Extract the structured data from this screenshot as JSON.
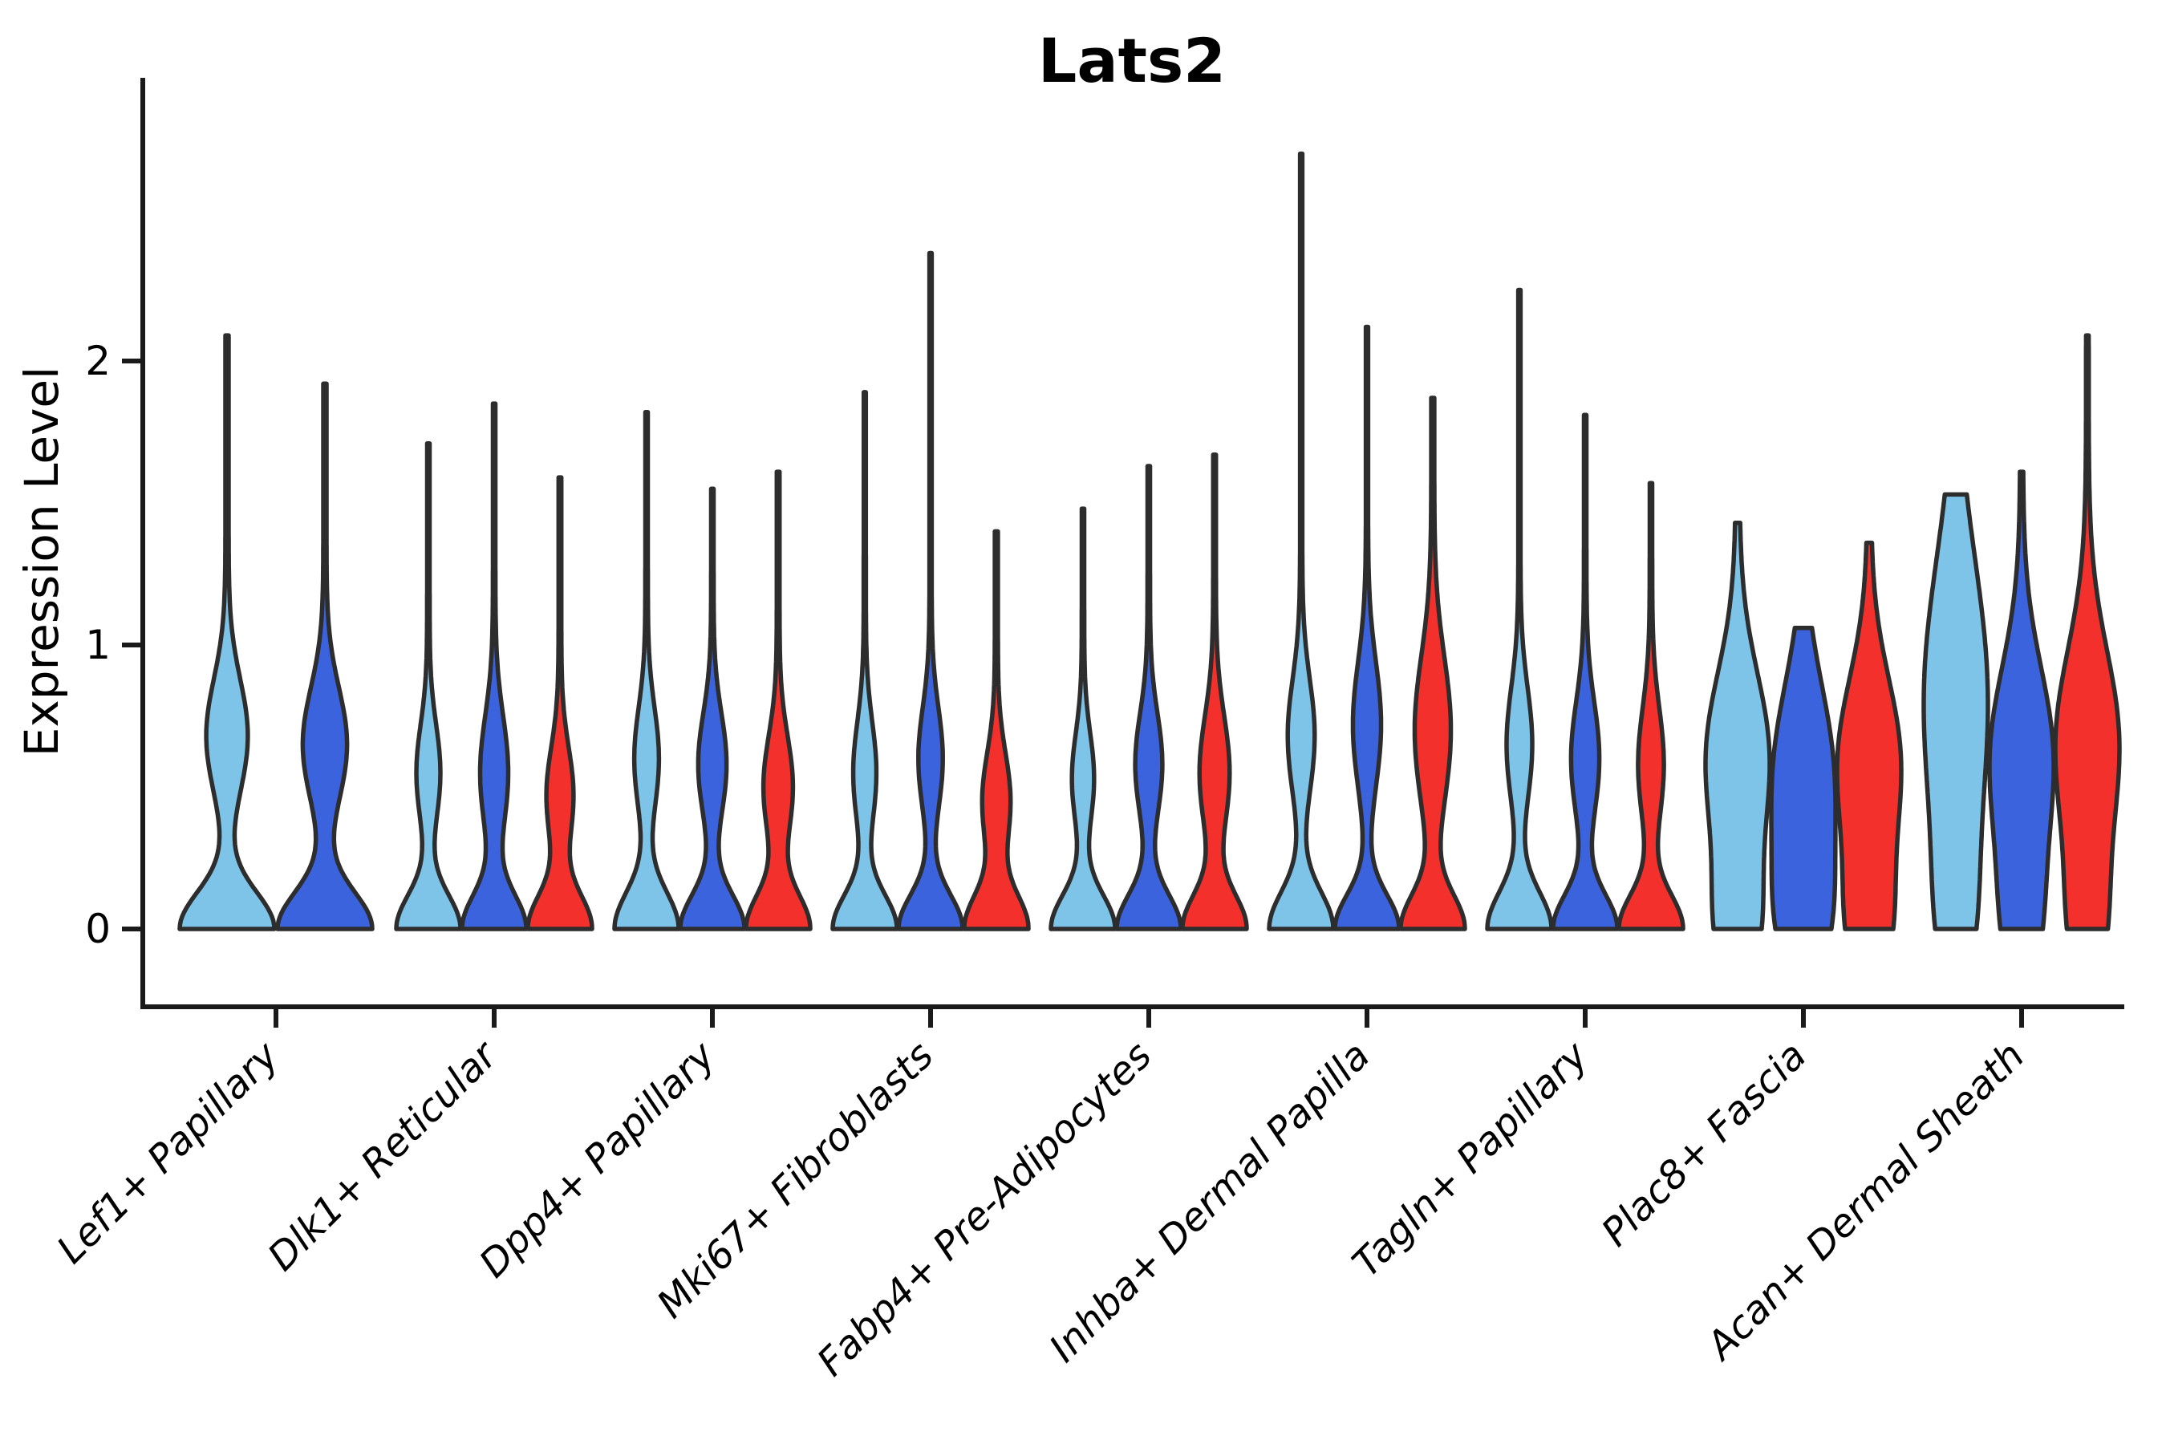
{
  "chart_data": {
    "type": "violin",
    "title": "Lats2",
    "ylabel": "Expression Level",
    "xlabel": "",
    "yticks": [
      "0",
      "1",
      "2"
    ],
    "ylim": [
      -0.27,
      2.97
    ],
    "grid": false,
    "legend_position": "none",
    "background": "#ffffff",
    "colors": {
      "light_blue": "#7EC4E9",
      "dark_blue": "#3B63DE",
      "red": "#F3302B",
      "outline": "#2D2D2D",
      "axis": "#1A1A1A",
      "text": "#000000"
    },
    "categories": [
      "Lef1+ Papillary",
      "Dlk1+ Reticular",
      "Dpp4+ Papillary",
      "Mki67+ Fibroblasts",
      "Fabp4+ Pre-Adipocytes",
      "Inhba+ Dermal Papilla",
      "Tagln+ Papillary",
      "Plac8+ Fascia",
      "Acan+ Dermal Sheath"
    ],
    "groups": [
      {
        "category": "Lef1+ Papillary",
        "violins": [
          {
            "split": "light_blue",
            "max_expression": 2.09,
            "min_expression": 0,
            "profile": {
              "bumps": [
                [
                  0,
                  0.13,
                  1.0
                ],
                [
                  0.68,
                  0.2,
                  0.42
                ]
              ],
              "spike": 0.035,
              "top": "point"
            }
          },
          {
            "split": "dark_blue",
            "max_expression": 1.92,
            "min_expression": 0,
            "profile": {
              "bumps": [
                [
                  0,
                  0.13,
                  1.0
                ],
                [
                  0.65,
                  0.2,
                  0.45
                ]
              ],
              "spike": 0.035,
              "top": "point"
            }
          }
        ]
      },
      {
        "category": "Dlk1+ Reticular",
        "violins": [
          {
            "split": "light_blue",
            "max_expression": 1.71,
            "min_expression": 0,
            "profile": {
              "bumps": [
                [
                  0,
                  0.12,
                  1.0
                ],
                [
                  0.55,
                  0.17,
                  0.35
                ]
              ],
              "spike": 0.04,
              "top": "point"
            }
          },
          {
            "split": "dark_blue",
            "max_expression": 1.85,
            "min_expression": 0,
            "profile": {
              "bumps": [
                [
                  0,
                  0.12,
                  1.0
                ],
                [
                  0.55,
                  0.2,
                  0.42
                ]
              ],
              "spike": 0.04,
              "top": "point"
            }
          },
          {
            "split": "red",
            "max_expression": 1.59,
            "min_expression": 0,
            "profile": {
              "bumps": [
                [
                  0,
                  0.12,
                  1.0
                ],
                [
                  0.47,
                  0.17,
                  0.4
                ]
              ],
              "spike": 0.045,
              "top": "point"
            }
          }
        ]
      },
      {
        "category": "Dpp4+ Papillary",
        "violins": [
          {
            "split": "light_blue",
            "max_expression": 1.82,
            "min_expression": 0,
            "profile": {
              "bumps": [
                [
                  0,
                  0.13,
                  1.0
                ],
                [
                  0.6,
                  0.18,
                  0.36
                ]
              ],
              "spike": 0.04,
              "top": "point"
            }
          },
          {
            "split": "dark_blue",
            "max_expression": 1.55,
            "min_expression": 0,
            "profile": {
              "bumps": [
                [
                  0,
                  0.12,
                  1.0
                ],
                [
                  0.58,
                  0.18,
                  0.42
                ]
              ],
              "spike": 0.04,
              "top": "point"
            }
          },
          {
            "split": "red",
            "max_expression": 1.61,
            "min_expression": 0,
            "profile": {
              "bumps": [
                [
                  0,
                  0.12,
                  1.0
                ],
                [
                  0.5,
                  0.18,
                  0.44
                ]
              ],
              "spike": 0.045,
              "top": "point"
            }
          }
        ]
      },
      {
        "category": "Mki67+ Fibroblasts",
        "violins": [
          {
            "split": "light_blue",
            "max_expression": 1.89,
            "min_expression": 0,
            "profile": {
              "bumps": [
                [
                  0,
                  0.12,
                  1.0
                ],
                [
                  0.55,
                  0.18,
                  0.34
                ]
              ],
              "spike": 0.035,
              "top": "point"
            }
          },
          {
            "split": "dark_blue",
            "max_expression": 2.38,
            "min_expression": 0,
            "profile": {
              "bumps": [
                [
                  0,
                  0.12,
                  1.0
                ],
                [
                  0.6,
                  0.18,
                  0.36
                ]
              ],
              "spike": 0.035,
              "top": "point"
            }
          },
          {
            "split": "red",
            "max_expression": 1.4,
            "min_expression": 0,
            "profile": {
              "bumps": [
                [
                  0,
                  0.12,
                  1.0
                ],
                [
                  0.45,
                  0.17,
                  0.42
                ]
              ],
              "spike": 0.05,
              "top": "point"
            }
          }
        ]
      },
      {
        "category": "Fabp4+ Pre-Adipocytes",
        "violins": [
          {
            "split": "light_blue",
            "max_expression": 1.48,
            "min_expression": 0,
            "profile": {
              "bumps": [
                [
                  0,
                  0.12,
                  1.0
                ],
                [
                  0.53,
                  0.16,
                  0.32
                ]
              ],
              "spike": 0.04,
              "top": "point"
            }
          },
          {
            "split": "dark_blue",
            "max_expression": 1.63,
            "min_expression": 0,
            "profile": {
              "bumps": [
                [
                  0,
                  0.12,
                  1.0
                ],
                [
                  0.58,
                  0.18,
                  0.4
                ]
              ],
              "spike": 0.04,
              "top": "point"
            }
          },
          {
            "split": "red",
            "max_expression": 1.67,
            "min_expression": 0,
            "profile": {
              "bumps": [
                [
                  0,
                  0.12,
                  1.0
                ],
                [
                  0.55,
                  0.2,
                  0.45
                ]
              ],
              "spike": 0.045,
              "top": "point"
            }
          }
        ]
      },
      {
        "category": "Inhba+ Dermal Papilla",
        "violins": [
          {
            "split": "light_blue",
            "max_expression": 2.73,
            "min_expression": 0,
            "profile": {
              "bumps": [
                [
                  0,
                  0.13,
                  1.0
                ],
                [
                  0.68,
                  0.2,
                  0.4
                ]
              ],
              "spike": 0.035,
              "top": "point"
            }
          },
          {
            "split": "dark_blue",
            "max_expression": 2.12,
            "min_expression": 0,
            "profile": {
              "bumps": [
                [
                  0,
                  0.12,
                  1.0
                ],
                [
                  0.72,
                  0.22,
                  0.42
                ]
              ],
              "spike": 0.035,
              "top": "point"
            }
          },
          {
            "split": "red",
            "max_expression": 1.87,
            "min_expression": 0,
            "profile": {
              "bumps": [
                [
                  0,
                  0.12,
                  1.0
                ],
                [
                  0.7,
                  0.26,
                  0.55
                ]
              ],
              "spike": 0.05,
              "top": "point"
            }
          }
        ]
      },
      {
        "category": "Tagln+ Papillary",
        "violins": [
          {
            "split": "light_blue",
            "max_expression": 2.25,
            "min_expression": 0,
            "profile": {
              "bumps": [
                [
                  0,
                  0.13,
                  1.0
                ],
                [
                  0.65,
                  0.2,
                  0.38
                ]
              ],
              "spike": 0.035,
              "top": "point"
            }
          },
          {
            "split": "dark_blue",
            "max_expression": 1.81,
            "min_expression": 0,
            "profile": {
              "bumps": [
                [
                  0,
                  0.12,
                  1.0
                ],
                [
                  0.6,
                  0.2,
                  0.42
                ]
              ],
              "spike": 0.04,
              "top": "point"
            }
          },
          {
            "split": "red",
            "max_expression": 1.57,
            "min_expression": 0,
            "profile": {
              "bumps": [
                [
                  0,
                  0.12,
                  1.0
                ],
                [
                  0.58,
                  0.2,
                  0.38
                ]
              ],
              "spike": 0.04,
              "top": "point"
            }
          }
        ]
      },
      {
        "category": "Plac8+ Fascia",
        "violins": [
          {
            "split": "light_blue",
            "max_expression": 1.43,
            "min_expression": 0,
            "profile": {
              "bumps": [
                [
                  0,
                  0.22,
                  0.55
                ],
                [
                  0.6,
                  0.3,
                  0.9
                ]
              ],
              "spike": 0.06,
              "top": "point"
            }
          },
          {
            "split": "dark_blue",
            "max_expression": 1.06,
            "min_expression": 0,
            "profile": {
              "bumps": [
                [
                  0,
                  0.22,
                  0.55
                ],
                [
                  0.52,
                  0.34,
                  0.9
                ]
              ],
              "spike": 0,
              "top": "dome"
            }
          },
          {
            "split": "red",
            "max_expression": 1.36,
            "min_expression": 0,
            "profile": {
              "bumps": [
                [
                  0,
                  0.22,
                  0.55
                ],
                [
                  0.58,
                  0.3,
                  0.92
                ]
              ],
              "spike": 0.055,
              "top": "point"
            }
          }
        ]
      },
      {
        "category": "Acan+ Dermal Sheath",
        "violins": [
          {
            "split": "light_blue",
            "max_expression": 1.53,
            "min_expression": 0,
            "profile": {
              "bumps": [
                [
                  0,
                  0.26,
                  0.35
                ],
                [
                  0.8,
                  0.5,
                  0.95
                ]
              ],
              "spike": 0,
              "top": "flat"
            }
          },
          {
            "split": "dark_blue",
            "max_expression": 1.61,
            "min_expression": 0,
            "profile": {
              "bumps": [
                [
                  0,
                  0.24,
                  0.45
                ],
                [
                  0.6,
                  0.32,
                  0.92
                ]
              ],
              "spike": 0.045,
              "top": "point"
            }
          },
          {
            "split": "red",
            "max_expression": 2.09,
            "min_expression": 0,
            "profile": {
              "bumps": [
                [
                  0,
                  0.24,
                  0.45
                ],
                [
                  0.65,
                  0.33,
                  0.92
                ]
              ],
              "spike": 0.04,
              "top": "point"
            }
          }
        ]
      }
    ]
  }
}
